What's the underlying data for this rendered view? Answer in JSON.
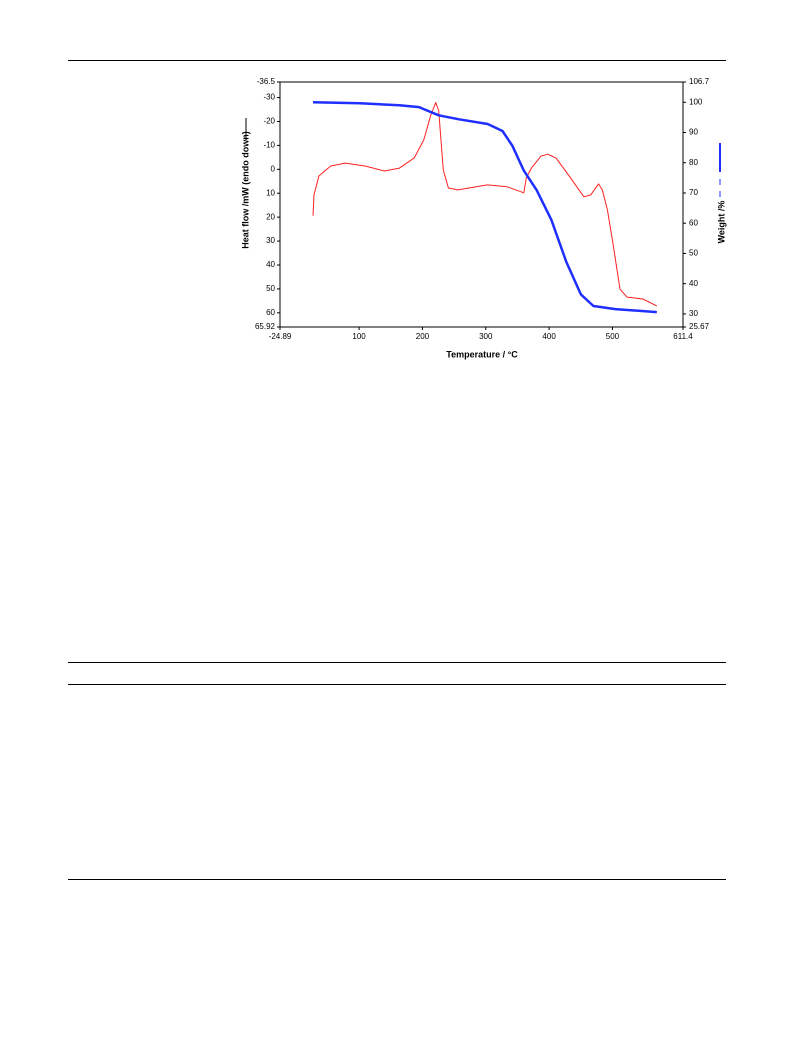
{
  "chart_data": {
    "type": "line",
    "x_label": "Temperature / °C",
    "y_label": "Heat flow /mW (endo down)",
    "y2_label": "Weight /%",
    "xlim": [
      -24.89,
      611.4
    ],
    "xticks": [
      -24.89,
      100,
      200,
      300,
      400,
      500,
      611.4
    ],
    "ylim": [
      65.92,
      -36.5
    ],
    "yticks": [
      65.92,
      60,
      50,
      40,
      30,
      20,
      10,
      0,
      -10,
      -20,
      -30,
      -36.5
    ],
    "y2lim": [
      25.67,
      106.7
    ],
    "y2ticks": [
      25.67,
      30,
      40,
      50,
      60,
      70,
      80,
      90,
      100,
      106.7
    ],
    "grid": false,
    "series": [
      {
        "color": "#ff2020",
        "axis": "y",
        "x": [
          27.2,
          28.8,
          36.5,
          55.1,
          78.4,
          109.4,
          140,
          163.6,
          186.8,
          202,
          213,
          220.9,
          225.6,
          233,
          241,
          256,
          302.6,
          333.6,
          360,
          364,
          372,
          387,
          398,
          411,
          434,
          455,
          465.6,
          478,
          484,
          492,
          501,
          512,
          523,
          548,
          570
        ],
        "values": [
          19.4,
          10.7,
          2.8,
          -1.4,
          -2.6,
          -1.4,
          0.7,
          -0.5,
          -4.7,
          -12.2,
          -22.5,
          -27.9,
          -24.6,
          0.3,
          7.8,
          8.6,
          6.5,
          7.3,
          9.8,
          3.6,
          -0.5,
          -5.5,
          -6.3,
          -4.7,
          3.6,
          11.5,
          10.7,
          6.1,
          8.6,
          16.9,
          31.4,
          50.1,
          53.4,
          54.2,
          57.1
        ]
      },
      {
        "color": "#1f2fff",
        "axis": "y2",
        "x": [
          27.2,
          101.6,
          163.6,
          194.6,
          225.6,
          256.6,
          303,
          326.4,
          342,
          360,
          380.4,
          403.6,
          427,
          450,
          470,
          504.5,
          570
        ],
        "values": [
          100,
          99.7,
          99,
          98.4,
          95.7,
          94.4,
          92.8,
          90.5,
          85.6,
          77.4,
          70.9,
          61.1,
          47.3,
          36.5,
          32.6,
          31.6,
          30.6
        ]
      }
    ]
  }
}
